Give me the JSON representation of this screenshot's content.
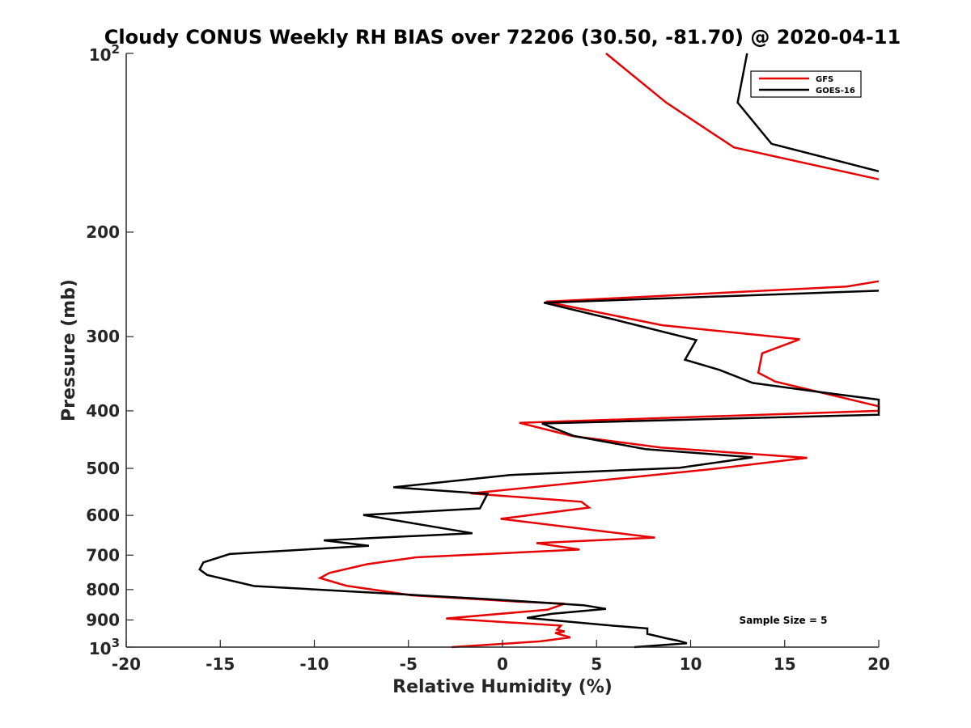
{
  "chart_data": {
    "type": "line",
    "title": "Cloudy CONUS Weekly RH BIAS over 72206 (30.50, -81.70) @ 2020-04-11",
    "xlabel": "Relative Humidity (%)",
    "ylabel": "Pressure (mb)",
    "xlim": [
      -20,
      20
    ],
    "ylim": [
      100,
      1000
    ],
    "y_scale": "log",
    "y_reversed": true,
    "x_ticks": [
      -20,
      -15,
      -10,
      -5,
      0,
      5,
      10,
      15,
      20
    ],
    "x_tick_labels": [
      "-20",
      "-15",
      "-10",
      "-5",
      "0",
      "5",
      "10",
      "15",
      "20"
    ],
    "y_ticks": [
      200,
      300,
      400,
      500,
      600,
      700,
      800,
      900
    ],
    "y_tick_labels": [
      "200",
      "300",
      "400",
      "500",
      "600",
      "700",
      "800",
      "900"
    ],
    "y_end_labels": {
      "top": {
        "base": "10",
        "exp": "2"
      },
      "bottom": {
        "base": "10",
        "exp": "3"
      }
    },
    "legend_position": "top-right",
    "annotation": "Sample Size = 5",
    "series": [
      {
        "name": "GFS",
        "color": "#e60000",
        "points": [
          {
            "x": 5.5,
            "p": 100
          },
          {
            "x": 8.7,
            "p": 121
          },
          {
            "x": 12.3,
            "p": 144
          },
          {
            "x": 20.0,
            "p": 163
          },
          {
            "x": null,
            "p": null
          },
          {
            "x": 20.0,
            "p": 242
          },
          {
            "x": 18.3,
            "p": 247
          },
          {
            "x": 2.3,
            "p": 262
          },
          {
            "x": 8.5,
            "p": 287
          },
          {
            "x": 15.8,
            "p": 303
          },
          {
            "x": 13.8,
            "p": 320
          },
          {
            "x": 13.6,
            "p": 345
          },
          {
            "x": 14.5,
            "p": 357
          },
          {
            "x": 20.0,
            "p": 393
          },
          {
            "x": 20.0,
            "p": 400
          },
          {
            "x": 0.9,
            "p": 419
          },
          {
            "x": 3.7,
            "p": 441
          },
          {
            "x": 8.4,
            "p": 461
          },
          {
            "x": 16.2,
            "p": 480
          },
          {
            "x": 11.0,
            "p": 502
          },
          {
            "x": -1.7,
            "p": 551
          },
          {
            "x": 4.2,
            "p": 569
          },
          {
            "x": 4.6,
            "p": 582
          },
          {
            "x": -0.1,
            "p": 608
          },
          {
            "x": 8.1,
            "p": 654
          },
          {
            "x": 1.8,
            "p": 668
          },
          {
            "x": 4.1,
            "p": 685
          },
          {
            "x": -4.6,
            "p": 706
          },
          {
            "x": -7.2,
            "p": 725
          },
          {
            "x": -9.2,
            "p": 750
          },
          {
            "x": -9.7,
            "p": 765
          },
          {
            "x": -8.3,
            "p": 788
          },
          {
            "x": -4.8,
            "p": 818
          },
          {
            "x": 0.8,
            "p": 838
          },
          {
            "x": 3.3,
            "p": 845
          },
          {
            "x": 2.4,
            "p": 865
          },
          {
            "x": -3.0,
            "p": 895
          },
          {
            "x": 3.1,
            "p": 920
          },
          {
            "x": 2.9,
            "p": 935
          },
          {
            "x": 3.3,
            "p": 941
          },
          {
            "x": 2.8,
            "p": 947
          },
          {
            "x": 3.6,
            "p": 963
          },
          {
            "x": 2.0,
            "p": 978
          },
          {
            "x": -2.7,
            "p": 1000
          }
        ]
      },
      {
        "name": "GOES-16",
        "color": "#000000",
        "points": [
          {
            "x": 13.0,
            "p": 100
          },
          {
            "x": 12.5,
            "p": 121
          },
          {
            "x": 14.3,
            "p": 142
          },
          {
            "x": 20.0,
            "p": 158
          },
          {
            "x": null,
            "p": null
          },
          {
            "x": 20.0,
            "p": 251
          },
          {
            "x": 2.2,
            "p": 263
          },
          {
            "x": 6.0,
            "p": 281
          },
          {
            "x": 10.3,
            "p": 304
          },
          {
            "x": 9.7,
            "p": 328
          },
          {
            "x": 11.5,
            "p": 341
          },
          {
            "x": 13.3,
            "p": 359
          },
          {
            "x": 16.6,
            "p": 371
          },
          {
            "x": 20.0,
            "p": 383
          },
          {
            "x": 20.0,
            "p": 406
          },
          {
            "x": 2.1,
            "p": 420
          },
          {
            "x": 3.8,
            "p": 441
          },
          {
            "x": 7.6,
            "p": 464
          },
          {
            "x": 13.3,
            "p": 479
          },
          {
            "x": 9.4,
            "p": 499
          },
          {
            "x": 0.4,
            "p": 513
          },
          {
            "x": -5.8,
            "p": 538
          },
          {
            "x": -0.8,
            "p": 552
          },
          {
            "x": -1.2,
            "p": 584
          },
          {
            "x": -7.4,
            "p": 599
          },
          {
            "x": -1.6,
            "p": 643
          },
          {
            "x": -9.5,
            "p": 661
          },
          {
            "x": -7.1,
            "p": 675
          },
          {
            "x": -14.5,
            "p": 697
          },
          {
            "x": -15.9,
            "p": 720
          },
          {
            "x": -16.1,
            "p": 740
          },
          {
            "x": -15.7,
            "p": 756
          },
          {
            "x": -13.2,
            "p": 789
          },
          {
            "x": -0.8,
            "p": 830
          },
          {
            "x": 4.3,
            "p": 850
          },
          {
            "x": 5.5,
            "p": 862
          },
          {
            "x": 2.6,
            "p": 879
          },
          {
            "x": 1.3,
            "p": 893
          },
          {
            "x": 5.8,
            "p": 920
          },
          {
            "x": 7.7,
            "p": 930
          },
          {
            "x": 7.7,
            "p": 950
          },
          {
            "x": 8.8,
            "p": 968
          },
          {
            "x": 9.3,
            "p": 975
          },
          {
            "x": 9.8,
            "p": 985
          },
          {
            "x": 7.0,
            "p": 1000
          }
        ]
      }
    ]
  }
}
